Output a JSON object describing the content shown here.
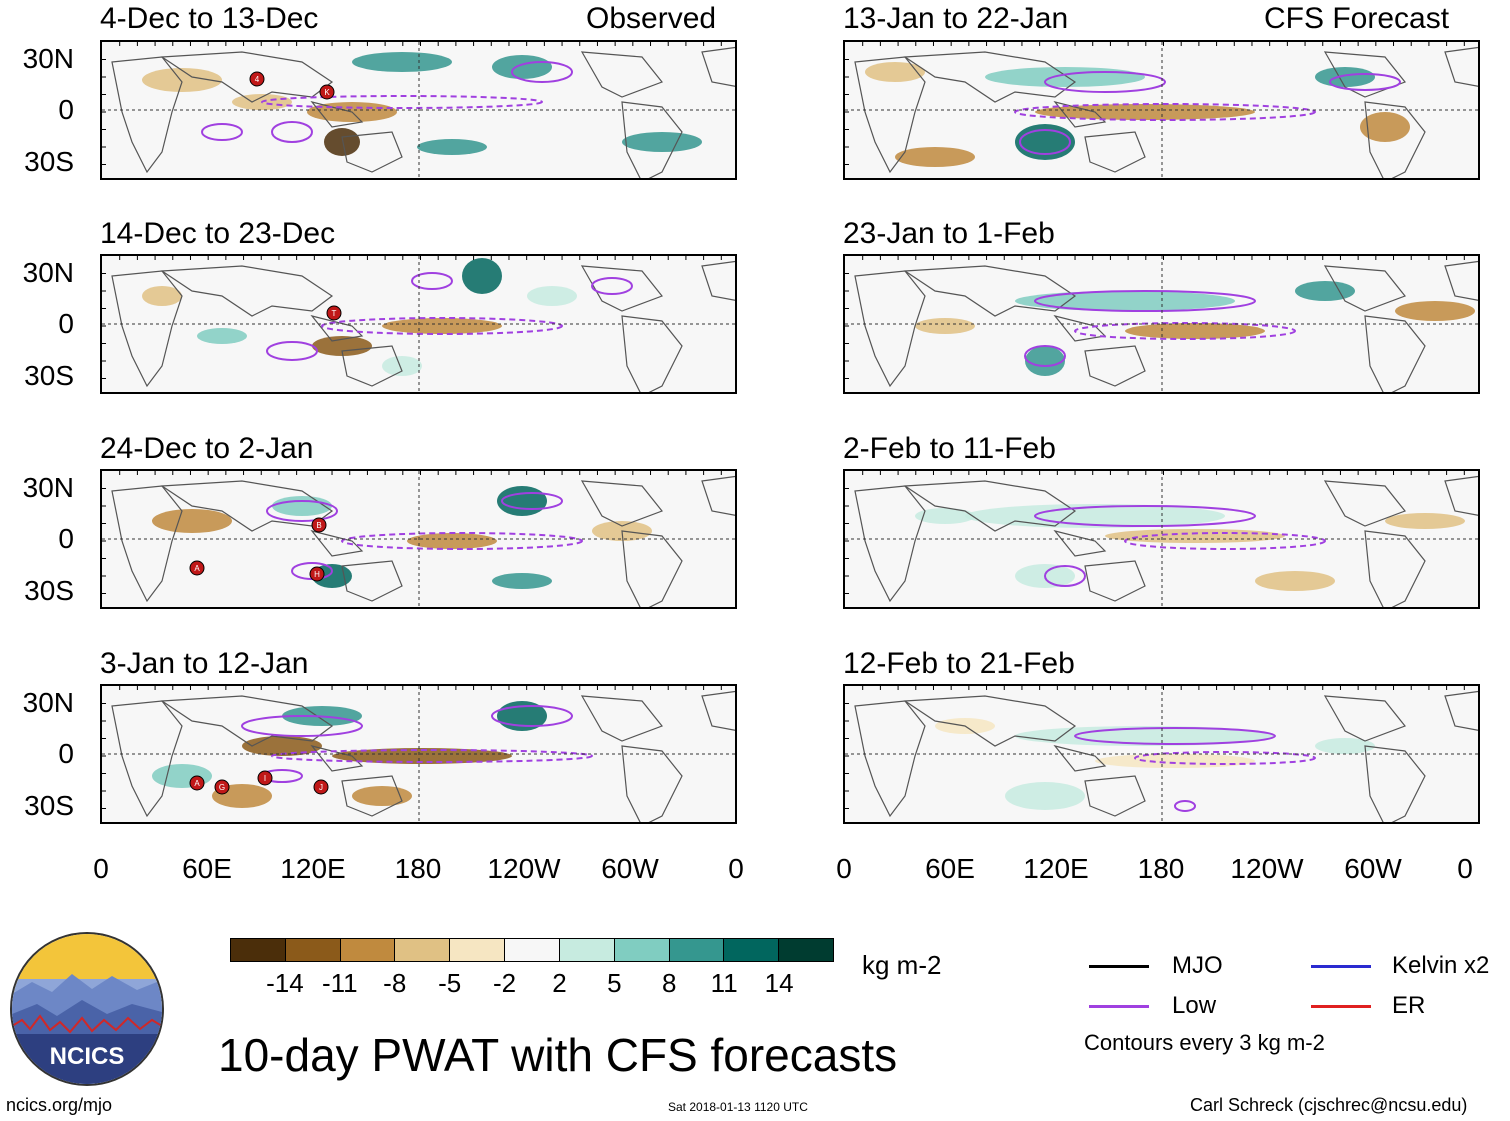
{
  "panels_left": [
    {
      "title": "4-Dec to 13-Dec",
      "right_label": "Observed",
      "storms": [
        "4",
        "K"
      ]
    },
    {
      "title": "14-Dec to 23-Dec",
      "right_label": "",
      "storms": [
        "T"
      ]
    },
    {
      "title": "24-Dec to 2-Jan",
      "right_label": "",
      "storms": [
        "B",
        "A",
        "H"
      ]
    },
    {
      "title": "3-Jan to 12-Jan",
      "right_label": "",
      "storms": [
        "A",
        "G",
        "I",
        "J"
      ]
    }
  ],
  "panels_right": [
    {
      "title": "13-Jan to 22-Jan",
      "right_label": "CFS Forecast"
    },
    {
      "title": "23-Jan to 1-Feb",
      "right_label": ""
    },
    {
      "title": "2-Feb to 11-Feb",
      "right_label": ""
    },
    {
      "title": "12-Feb to 21-Feb",
      "right_label": ""
    }
  ],
  "y_labels": [
    "30N",
    "0",
    "30S"
  ],
  "x_labels": [
    "0",
    "60E",
    "120E",
    "180",
    "120W",
    "60W",
    "0"
  ],
  "colorbar": {
    "colors": [
      "#4b2e0a",
      "#8b5a1a",
      "#c08a3e",
      "#e0c184",
      "#f6e6c2",
      "#f7f7f7",
      "#c7ebe0",
      "#80cdc1",
      "#35978f",
      "#01665e",
      "#003c30"
    ],
    "labels": [
      "-14",
      "-11",
      "-8",
      "-5",
      "-2",
      "2",
      "5",
      "8",
      "11",
      "14"
    ],
    "units": "kg m-2"
  },
  "legend": {
    "items": [
      {
        "label": "MJO",
        "color": "#000000"
      },
      {
        "label": "Kelvin x2",
        "color": "#2a2ad0"
      },
      {
        "label": "Low",
        "color": "#a040e0"
      },
      {
        "label": "ER",
        "color": "#e02020"
      }
    ],
    "note": "Contours every 3 kg m-2"
  },
  "main_title": "10-day PWAT with CFS forecasts",
  "logo_text": "NCICS",
  "footer": {
    "left": "ncics.org/mjo",
    "center": "Sat 2018-01-13 1120 UTC",
    "right": "Carl Schreck (cjschrec@ncsu.edu)"
  }
}
